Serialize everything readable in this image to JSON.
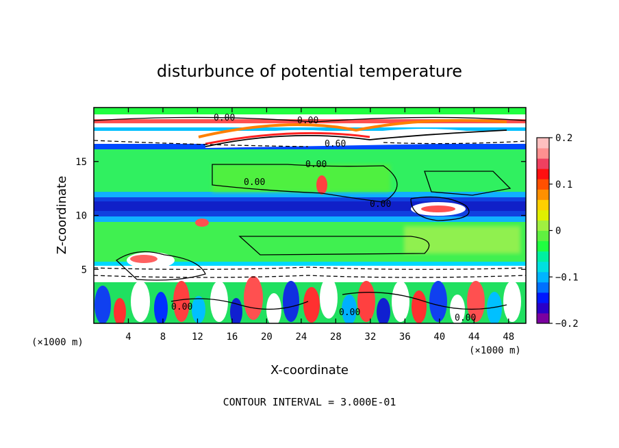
{
  "chart_data": {
    "type": "heatmap",
    "title": "disturbunce of potential temperature",
    "xlabel": "X-coordinate",
    "ylabel": "Z-coordinate",
    "x_unit": "(×1000 m)",
    "z_unit": "(×1000 m)",
    "xlim": [
      0,
      50
    ],
    "ylim": [
      0,
      20
    ],
    "x_ticks": [
      4,
      8,
      12,
      16,
      20,
      24,
      28,
      32,
      36,
      40,
      44,
      48
    ],
    "y_ticks": [
      5,
      10,
      15
    ],
    "colorbar": {
      "range": [
        -0.2,
        0.2
      ],
      "ticks": [
        "0.2",
        "0.1",
        "0",
        "−0.1",
        "−0.2"
      ],
      "colors": [
        "#7b00a0",
        "#2a00c8",
        "#0018ff",
        "#0070ff",
        "#00b4ff",
        "#00e0e0",
        "#00f0a0",
        "#20ff40",
        "#60f040",
        "#a0f040",
        "#e0f000",
        "#ffd000",
        "#ff9000",
        "#ff5000",
        "#ff1010",
        "#f04060",
        "#ff9090",
        "#ffc0c0"
      ]
    },
    "contour_labels": [
      "0.00",
      "0.00",
      "0.60",
      "0.00",
      "0.00",
      "0.00",
      "0.00",
      "0.00",
      "0.00"
    ],
    "contour_interval_text": "CONTOUR INTERVAL = 3.000E-01"
  }
}
